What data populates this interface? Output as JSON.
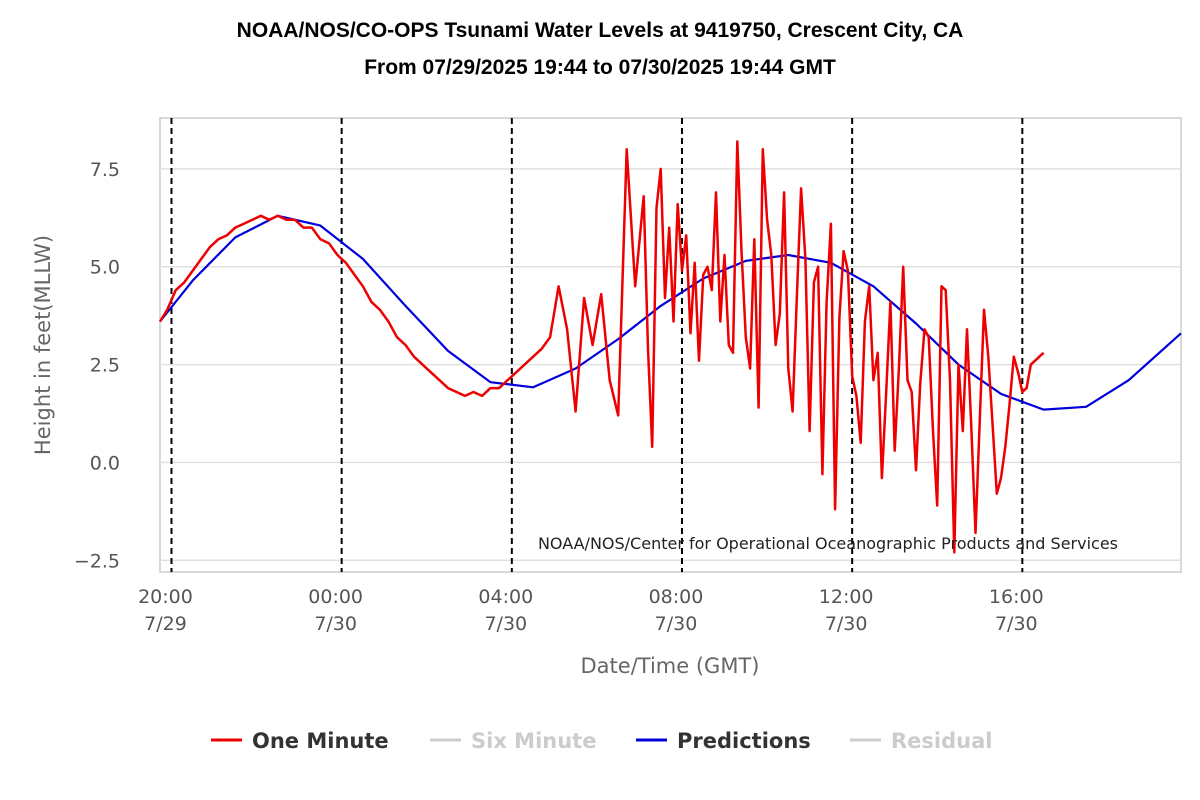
{
  "chart_data": {
    "type": "line",
    "title": "NOAA/NOS/CO-OPS Tsunami Water Levels at 9419750, Crescent City, CA",
    "subtitle": "From 07/29/2025 19:44 to 07/30/2025 19:44 GMT",
    "xlabel": "Date/Time (GMT)",
    "ylabel": "Height in feet(MLLW)",
    "credit": "NOAA/NOS/Center for Operational Oceanographic Products and Services",
    "x_unit": "hours since 07/29/2025 00:00 GMT",
    "xlim": [
      19.73,
      43.73
    ],
    "ylim": [
      -2.8,
      8.8
    ],
    "grid": true,
    "legend_position": "bottom",
    "y_ticks": [
      {
        "value": -2.5,
        "label": "−2.5"
      },
      {
        "value": 0,
        "label": "0.0"
      },
      {
        "value": 2.5,
        "label": "2.5"
      },
      {
        "value": 5,
        "label": "5.0"
      },
      {
        "value": 7.5,
        "label": "7.5"
      }
    ],
    "x_ticks": [
      {
        "value": 20,
        "time": "20:00",
        "date": "7/29"
      },
      {
        "value": 24,
        "time": "00:00",
        "date": "7/30"
      },
      {
        "value": 28,
        "time": "04:00",
        "date": "7/30"
      },
      {
        "value": 32,
        "time": "08:00",
        "date": "7/30"
      },
      {
        "value": 36,
        "time": "12:00",
        "date": "7/30"
      },
      {
        "value": 40,
        "time": "16:00",
        "date": "7/30"
      }
    ],
    "vertical_markers": [
      20,
      24,
      28,
      32,
      36,
      40
    ],
    "series": [
      {
        "name": "One Minute",
        "color": "#ee0000",
        "visible": true,
        "x": [
          19.73,
          19.9,
          20.1,
          20.3,
          20.5,
          20.7,
          20.9,
          21.1,
          21.3,
          21.5,
          21.7,
          21.9,
          22.1,
          22.3,
          22.5,
          22.7,
          22.9,
          23.1,
          23.3,
          23.5,
          23.7,
          23.9,
          24.1,
          24.3,
          24.5,
          24.7,
          24.9,
          25.1,
          25.3,
          25.5,
          25.7,
          25.9,
          26.1,
          26.3,
          26.5,
          26.7,
          26.9,
          27.1,
          27.3,
          27.5,
          27.7,
          27.9,
          28.1,
          28.3,
          28.5,
          28.7,
          28.9,
          29.1,
          29.3,
          29.5,
          29.7,
          29.9,
          30.1,
          30.3,
          30.5,
          30.7,
          30.9,
          31.1,
          31.2,
          31.3,
          31.4,
          31.5,
          31.6,
          31.7,
          31.8,
          31.9,
          32.0,
          32.1,
          32.2,
          32.3,
          32.4,
          32.5,
          32.6,
          32.7,
          32.8,
          32.9,
          33.0,
          33.1,
          33.2,
          33.3,
          33.4,
          33.5,
          33.6,
          33.7,
          33.8,
          33.9,
          34.0,
          34.1,
          34.2,
          34.3,
          34.4,
          34.5,
          34.6,
          34.7,
          34.8,
          34.9,
          35.0,
          35.1,
          35.2,
          35.3,
          35.4,
          35.5,
          35.6,
          35.7,
          35.8,
          35.9,
          36.0,
          36.1,
          36.2,
          36.3,
          36.4,
          36.5,
          36.6,
          36.7,
          36.8,
          36.9,
          37.0,
          37.1,
          37.2,
          37.3,
          37.4,
          37.5,
          37.6,
          37.7,
          37.8,
          37.9,
          38.0,
          38.1,
          38.2,
          38.3,
          38.4,
          38.5,
          38.6,
          38.7,
          38.8,
          38.9,
          39.0,
          39.1,
          39.2,
          39.3,
          39.4,
          39.5,
          39.6,
          39.7,
          39.8,
          39.9,
          40.0,
          40.1,
          40.2,
          40.3,
          40.4,
          40.5
        ],
        "y": [
          3.6,
          3.9,
          4.4,
          4.6,
          4.9,
          5.2,
          5.5,
          5.7,
          5.8,
          6.0,
          6.1,
          6.2,
          6.3,
          6.2,
          6.3,
          6.2,
          6.2,
          6.0,
          6.0,
          5.7,
          5.6,
          5.3,
          5.1,
          4.8,
          4.5,
          4.1,
          3.9,
          3.6,
          3.2,
          3.0,
          2.7,
          2.5,
          2.3,
          2.1,
          1.9,
          1.8,
          1.7,
          1.8,
          1.7,
          1.9,
          1.9,
          2.1,
          2.3,
          2.5,
          2.7,
          2.9,
          3.2,
          4.5,
          3.4,
          1.3,
          4.2,
          3.0,
          4.3,
          2.1,
          1.2,
          8.0,
          4.5,
          6.8,
          2.9,
          0.4,
          6.5,
          7.5,
          4.2,
          6.0,
          3.6,
          6.6,
          4.9,
          5.8,
          3.3,
          5.1,
          2.6,
          4.8,
          5.0,
          4.4,
          6.9,
          3.6,
          5.3,
          3.0,
          2.8,
          8.2,
          5.4,
          3.2,
          2.4,
          5.7,
          1.4,
          8.0,
          6.2,
          5.3,
          3.0,
          3.8,
          6.9,
          2.4,
          1.3,
          4.2,
          7.0,
          5.2,
          0.8,
          4.6,
          5.0,
          -0.3,
          4.1,
          6.1,
          -1.2,
          3.7,
          5.4,
          4.9,
          2.2,
          1.7,
          0.5,
          3.6,
          4.5,
          2.1,
          2.8,
          -0.4,
          1.8,
          4.1,
          0.3,
          2.4,
          5.0,
          2.1,
          1.8,
          -0.2,
          2.0,
          3.4,
          3.2,
          0.8,
          -1.1,
          4.5,
          4.4,
          2.1,
          -2.3,
          2.5,
          0.8,
          3.4,
          0.9,
          -1.8,
          1.1,
          3.9,
          2.7,
          1.0,
          -0.8,
          -0.4,
          0.4,
          1.5,
          2.7,
          2.3,
          1.8,
          1.9,
          2.5,
          2.6,
          2.7,
          2.8
        ]
      },
      {
        "name": "Six Minute",
        "color": "#cccccc",
        "visible": false
      },
      {
        "name": "Predictions",
        "color": "#0000dd",
        "visible": true,
        "x": [
          19.73,
          20.5,
          21.5,
          22.5,
          23.5,
          24.5,
          25.5,
          26.5,
          27.5,
          28.5,
          29.5,
          30.5,
          31.5,
          32.5,
          33.5,
          34.5,
          35.5,
          36.5,
          37.5,
          38.5,
          39.5,
          40.5,
          41.5,
          42.5,
          43.73
        ],
        "y": [
          3.6,
          4.65,
          5.75,
          6.3,
          6.05,
          5.2,
          4.0,
          2.85,
          2.05,
          1.92,
          2.4,
          3.15,
          4.0,
          4.7,
          5.15,
          5.3,
          5.1,
          4.5,
          3.55,
          2.5,
          1.75,
          1.35,
          1.42,
          2.1,
          3.3
        ]
      },
      {
        "name": "Residual",
        "color": "#cccccc",
        "visible": false
      }
    ]
  }
}
